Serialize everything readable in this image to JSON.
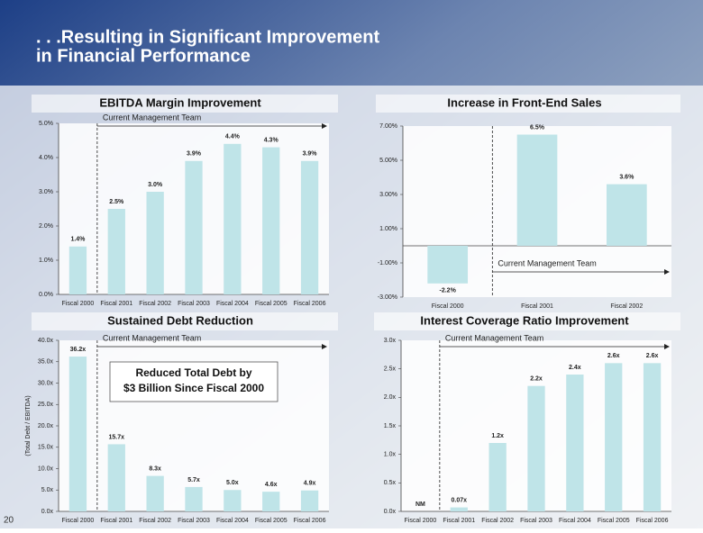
{
  "slide_title": [
    ". . .Resulting in Significant Improvement",
    "in Financial Performance"
  ],
  "page_number": "20",
  "chart_data": [
    {
      "type": "bar",
      "title": "EBITDA Margin Improvement",
      "annotation": "Current Management Team",
      "categories": [
        "Fiscal 2000",
        "Fiscal 2001",
        "Fiscal 2002",
        "Fiscal 2003",
        "Fiscal 2004",
        "Fiscal 2005",
        "Fiscal 2006"
      ],
      "values": [
        1.4,
        2.5,
        3.0,
        3.9,
        4.4,
        4.3,
        3.9
      ],
      "value_labels": [
        "1.4%",
        "2.5%",
        "3.0%",
        "3.9%",
        "4.4%",
        "4.3%",
        "3.9%"
      ],
      "color": "#bfe4e8",
      "ylim": [
        0,
        5
      ],
      "yticks": [
        {
          "value": 0,
          "label": "0.0%"
        },
        {
          "value": 1,
          "label": "1.0%"
        },
        {
          "value": 2,
          "label": "2.0%"
        },
        {
          "value": 3,
          "label": "3.0%"
        },
        {
          "value": 4,
          "label": "4.0%"
        },
        {
          "value": 5,
          "label": "5.0%"
        }
      ]
    },
    {
      "type": "bar",
      "title": "Increase in Front-End Sales",
      "annotation": "Current Management Team",
      "categories": [
        "Fiscal 2000",
        "Fiscal 2001",
        "Fiscal 2002"
      ],
      "values": [
        -2.2,
        6.5,
        3.6
      ],
      "value_labels": [
        "-2.2%",
        "6.5%",
        "3.6%"
      ],
      "color": "#bfe4e8",
      "ylim": [
        -3,
        7
      ],
      "yticks": [
        {
          "value": -3,
          "label": "-3.00%"
        },
        {
          "value": -1,
          "label": "-1.00%"
        },
        {
          "value": 1,
          "label": "1.00%"
        },
        {
          "value": 3,
          "label": "3.00%"
        },
        {
          "value": 5,
          "label": "5.00%"
        },
        {
          "value": 7,
          "label": "7.00%"
        }
      ]
    },
    {
      "type": "bar",
      "title": "Sustained Debt Reduction",
      "annotation": "Current Management Team",
      "y_label": "(Total Debt / EBITDA)",
      "callout": [
        "Reduced Total Debt by",
        "$3 Billion Since Fiscal 2000"
      ],
      "categories": [
        "Fiscal 2000",
        "Fiscal 2001",
        "Fiscal 2002",
        "Fiscal 2003",
        "Fiscal 2004",
        "Fiscal 2005",
        "Fiscal 2006"
      ],
      "values": [
        36.2,
        15.7,
        8.3,
        5.7,
        5.0,
        4.6,
        4.9
      ],
      "value_labels": [
        "36.2x",
        "15.7x",
        "8.3x",
        "5.7x",
        "5.0x",
        "4.6x",
        "4.9x"
      ],
      "color": "#bfe4e8",
      "ylim": [
        0,
        40
      ],
      "yticks": [
        {
          "value": 0,
          "label": "0.0x"
        },
        {
          "value": 5,
          "label": "5.0x"
        },
        {
          "value": 10,
          "label": "10.0x"
        },
        {
          "value": 15,
          "label": "15.0x"
        },
        {
          "value": 20,
          "label": "20.0x"
        },
        {
          "value": 25,
          "label": "25.0x"
        },
        {
          "value": 30,
          "label": "30.0x"
        },
        {
          "value": 35,
          "label": "35.0x"
        },
        {
          "value": 40,
          "label": "40.0x"
        }
      ]
    },
    {
      "type": "bar",
      "title": "Interest Coverage Ratio Improvement",
      "annotation": "Current Management Team",
      "categories": [
        "Fiscal 2000",
        "Fiscal 2001",
        "Fiscal 2002",
        "Fiscal 2003",
        "Fiscal 2004",
        "Fiscal 2005",
        "Fiscal 2006"
      ],
      "values": [
        null,
        0.07,
        1.2,
        2.2,
        2.4,
        2.6,
        2.6
      ],
      "value_labels": [
        "NM",
        "0.07x",
        "1.2x",
        "2.2x",
        "2.4x",
        "2.6x",
        "2.6x"
      ],
      "color": "#bfe4e8",
      "ylim": [
        0,
        3
      ],
      "yticks": [
        {
          "value": 0,
          "label": "0.0x"
        },
        {
          "value": 0.5,
          "label": "0.5x"
        },
        {
          "value": 1,
          "label": "1.0x"
        },
        {
          "value": 1.5,
          "label": "1.5x"
        },
        {
          "value": 2,
          "label": "2.0x"
        },
        {
          "value": 2.5,
          "label": "2.5x"
        },
        {
          "value": 3,
          "label": "3.0x"
        }
      ]
    }
  ]
}
